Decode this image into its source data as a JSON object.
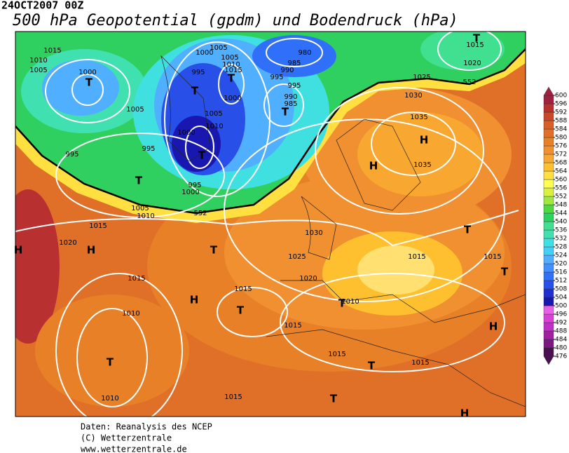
{
  "header": {
    "date": "24OCT2007 00Z",
    "title": "500 hPa Geopotential (gpdm) und Bodendruck (hPa)"
  },
  "colorbar": {
    "ticks": [
      476,
      480,
      484,
      488,
      492,
      496,
      500,
      504,
      508,
      512,
      516,
      520,
      524,
      528,
      532,
      536,
      540,
      544,
      548,
      552,
      556,
      560,
      564,
      568,
      572,
      576,
      580,
      584,
      588,
      592,
      596,
      600
    ],
    "colors": [
      "#4a1050",
      "#7a1a80",
      "#a020a0",
      "#c030c8",
      "#d840d8",
      "#e860e8",
      "#1818b0",
      "#2030d0",
      "#2850e8",
      "#3070f8",
      "#4090ff",
      "#50b0ff",
      "#40d0f8",
      "#40e0e0",
      "#40e0b0",
      "#40e090",
      "#30d060",
      "#50d840",
      "#a0e840",
      "#d8f040",
      "#ffff50",
      "#ffe040",
      "#ffc030",
      "#f8a830",
      "#f09030",
      "#e88028",
      "#e07028",
      "#d86028",
      "#c84828",
      "#b83030",
      "#a02040"
    ]
  },
  "map": {
    "labels": [
      "1015",
      "1010",
      "1005",
      "1000",
      "T",
      "1005",
      "1005",
      "1000",
      "1005",
      "1010",
      "1015",
      "995",
      "T",
      "T",
      "1000",
      "980",
      "985",
      "990",
      "995",
      "995",
      "990",
      "985",
      "T",
      "1005",
      "1010",
      "1000",
      "T",
      "995",
      "T",
      "995",
      "995",
      "1000",
      "1005",
      "1010",
      "552",
      "552",
      "1025",
      "1030",
      "1035",
      "H",
      "H",
      "1035",
      "1020",
      "1015",
      "T",
      "1015",
      "1020",
      "H",
      "H",
      "T",
      "1030",
      "1025",
      "1020",
      "1015",
      "T",
      "1015",
      "T",
      "1015",
      "H",
      "1015",
      "T",
      "1010",
      "T",
      "1010",
      "1015",
      "H",
      "T",
      "1015",
      "T",
      "1015",
      "1010",
      "T",
      "1015",
      "H"
    ]
  },
  "footer": {
    "lines": [
      "Daten: Reanalysis des NCEP",
      "(C) Wetterzentrale",
      "www.wetterzentrale.de"
    ]
  }
}
